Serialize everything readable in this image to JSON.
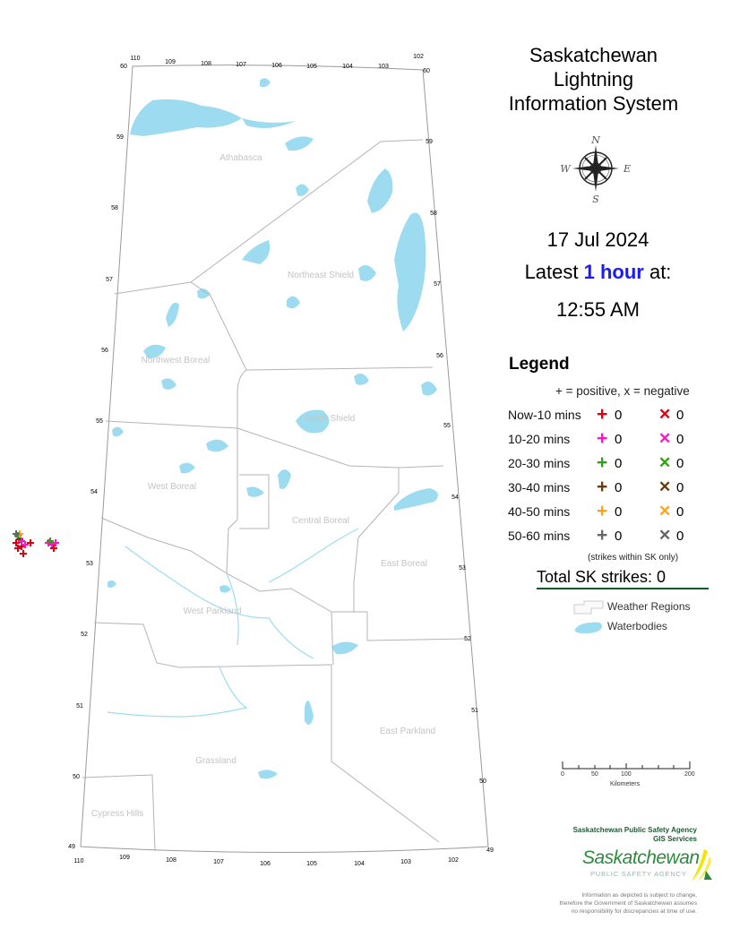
{
  "header": {
    "title_lines": [
      "Saskatchewan",
      "Lightning",
      "Information System"
    ],
    "date": "17 Jul 2024",
    "latest_prefix": "Latest ",
    "latest_highlight": "1 hour",
    "latest_suffix": " at:",
    "time": "12:55 AM",
    "highlight_color": "#1a1aff"
  },
  "compass": {
    "icon": "compass-rose-icon",
    "n": "N",
    "s": "S",
    "e": "E",
    "w": "W"
  },
  "legend": {
    "title": "Legend",
    "subtitle": "+ = positive, x = negative",
    "rows": [
      {
        "label": "Now-10 mins",
        "color": "#e0000f",
        "positive": "0",
        "negative": "0"
      },
      {
        "label": "10-20 mins",
        "color": "#ff14c8",
        "positive": "0",
        "negative": "0"
      },
      {
        "label": "20-30 mins",
        "color": "#2ea014",
        "positive": "0",
        "negative": "0"
      },
      {
        "label": "30-40 mins",
        "color": "#6b3c0a",
        "positive": "0",
        "negative": "0"
      },
      {
        "label": "40-50 mins",
        "color": "#ffa21e",
        "positive": "0",
        "negative": "0"
      },
      {
        "label": "50-60 mins",
        "color": "#666666",
        "positive": "0",
        "negative": "0"
      }
    ],
    "positive_symbol": "+",
    "negative_symbol": "✕",
    "note": "(strikes within SK only)",
    "total": "Total SK strikes: 0",
    "keys": {
      "regions": "Weather Regions",
      "water": "Waterbodies"
    }
  },
  "map": {
    "water_color": "#9ddcf0",
    "boundary_color": "#b4b4b4",
    "regions": [
      "Athabasca",
      "Northeast Shield",
      "Northwest Boreal",
      "South Shield",
      "West Boreal",
      "Central Boreal",
      "East Boreal",
      "West Parkland",
      "East Parkland",
      "Grassland",
      "Cypress Hills"
    ],
    "lat_labels": [
      "60",
      "59",
      "58",
      "57",
      "56",
      "55",
      "54",
      "53",
      "52",
      "51",
      "50",
      "49"
    ],
    "lon_labels_top": [
      "110",
      "109",
      "108",
      "107",
      "106",
      "105",
      "104",
      "103",
      "102"
    ],
    "lon_labels_bottom": [
      "110",
      "109",
      "108",
      "107",
      "106",
      "105",
      "104",
      "103",
      "102"
    ]
  },
  "scale_bar": {
    "ticks": [
      "0",
      "50",
      "100",
      "200"
    ],
    "unit": "Kilometers"
  },
  "footer": {
    "agency": "Saskatchewan Public Safety Agency",
    "services": "GIS  Services",
    "logo_main": "Saskatchewan",
    "logo_sub": "PUBLIC SAFETY AGENCY",
    "disclaimer": [
      "Information as depicted is subject to change,",
      "therefore the Government of Saskatchewan assumes",
      "no responsibility for discrepancies at time of use."
    ]
  }
}
